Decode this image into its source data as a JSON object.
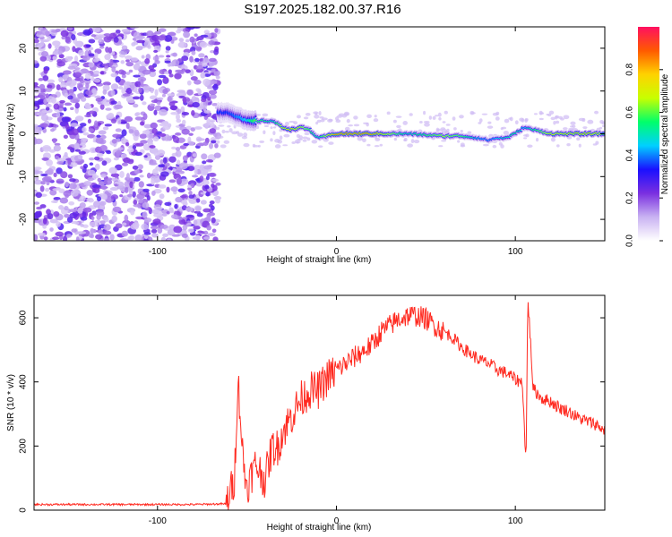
{
  "title": "S197.2025.182.00.37.R16",
  "chart_data": [
    {
      "type": "heatmap",
      "xlabel": "Height of straight line (km)",
      "ylabel": "Frequency (Hz)",
      "xlim": [
        -169,
        150
      ],
      "ylim": [
        -25,
        25
      ],
      "xticks": [
        -100,
        0,
        100
      ],
      "yticks": [
        -20,
        -10,
        0,
        10,
        20
      ],
      "colorbar": {
        "label": "Normalized spectral amplitude",
        "range": [
          0,
          1
        ],
        "ticks": [
          0.0,
          0.2,
          0.4,
          0.6,
          0.8
        ],
        "colors": [
          "#ffffff",
          "#c9b2f2",
          "#7a2fe0",
          "#1a10ff",
          "#00d0ff",
          "#00ff6a",
          "#c8ff00",
          "#ffd200",
          "#ff5a00",
          "#ff1060"
        ]
      },
      "ridge": {
        "x": [
          -60,
          -50,
          -45,
          -40,
          -35,
          -30,
          -25,
          -20,
          -15,
          -10,
          0,
          20,
          40,
          60,
          70,
          80,
          85,
          90,
          95,
          100,
          105,
          120,
          140,
          150
        ],
        "freq": [
          5,
          3,
          3,
          3,
          3,
          1.5,
          1,
          1.5,
          1,
          -1,
          0,
          0,
          0,
          -0.5,
          -0.5,
          -1,
          -1.5,
          -1,
          -1,
          0,
          1.5,
          0,
          0,
          0
        ],
        "amplitude": [
          0.35,
          0.45,
          0.6,
          0.55,
          0.5,
          0.7,
          0.75,
          0.7,
          0.6,
          0.5,
          0.85,
          0.85,
          0.5,
          0.65,
          0.6,
          0.45,
          0.4,
          0.45,
          0.5,
          0.55,
          0.45,
          0.7,
          0.75,
          0.7
        ]
      }
    },
    {
      "type": "line",
      "xlabel": "Height of straight line (km)",
      "ylabel": "SNR (10 * v/v)",
      "xlim": [
        -169,
        150
      ],
      "ylim": [
        0,
        670
      ],
      "xticks": [
        -100,
        0,
        100
      ],
      "yticks": [
        0,
        200,
        400,
        600
      ],
      "series": [
        {
          "color": "#ff2a20",
          "x": [
            -169,
            -140,
            -110,
            -80,
            -62,
            -57,
            -55,
            -52,
            -50,
            -45,
            -40,
            -36,
            -33,
            -30,
            -25,
            -20,
            -15,
            -10,
            -5,
            0,
            5,
            10,
            15,
            20,
            25,
            30,
            35,
            40,
            45,
            50,
            55,
            60,
            65,
            70,
            75,
            80,
            85,
            90,
            95,
            100,
            104,
            106,
            107,
            110,
            115,
            120,
            125,
            130,
            135,
            140,
            145,
            150
          ],
          "y": [
            18,
            18,
            18,
            18,
            20,
            100,
            420,
            150,
            80,
            150,
            100,
            200,
            200,
            250,
            300,
            350,
            380,
            380,
            420,
            440,
            460,
            480,
            500,
            520,
            560,
            580,
            600,
            610,
            610,
            600,
            580,
            560,
            540,
            510,
            490,
            470,
            460,
            440,
            430,
            410,
            400,
            140,
            670,
            380,
            350,
            340,
            320,
            310,
            290,
            280,
            270,
            250
          ]
        }
      ]
    }
  ]
}
